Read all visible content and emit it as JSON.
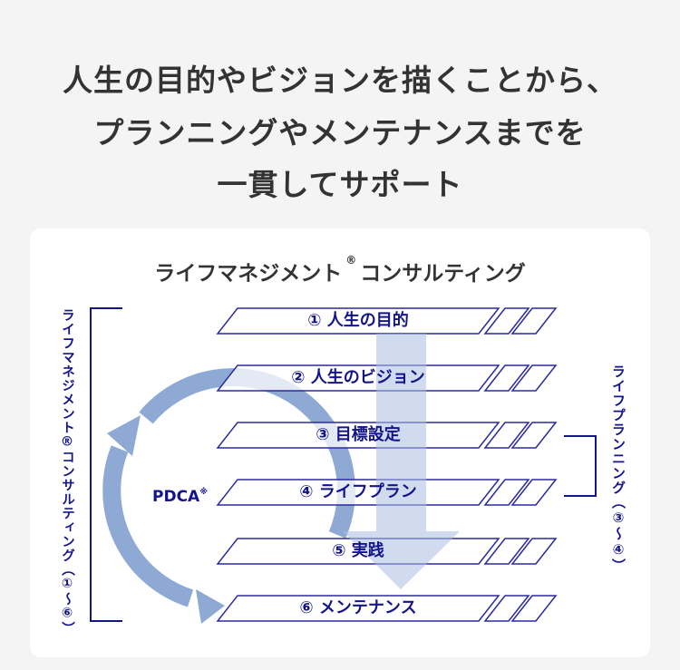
{
  "headline": [
    "人生の目的やビジョンを描くことから、",
    "プランニングやメンテナンスまでを",
    "一貫してサポート"
  ],
  "card": {
    "title": "ライフマネジメント",
    "title_mark": "®",
    "title_suffix": "コンサルティング",
    "steps": [
      "① 人生の目的",
      "② 人生のビジョン",
      "③ 目標設定",
      "④ ライフプラン",
      "⑤ 実践",
      "⑥ メンテナンス"
    ],
    "left_label": "ライフマネジメント®コンサルティング（①～⑥）",
    "right_label": "ライフプランニング（③～④）",
    "pdca": "PDCA",
    "pdca_mark": "※"
  },
  "colors": {
    "navy": "#14148a",
    "cycle_arrow": "#8eaad4",
    "down_arrow": "#c3d0ea",
    "background": "#f4f4f4"
  }
}
